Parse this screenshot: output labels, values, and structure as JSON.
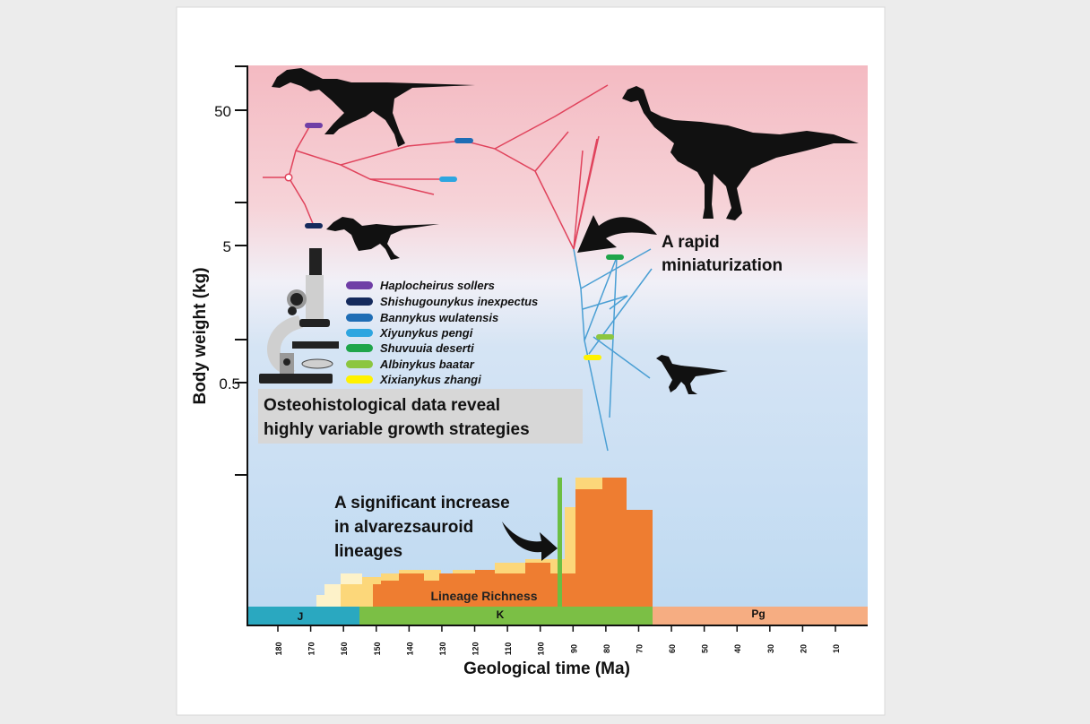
{
  "axes": {
    "ylabel": "Body weight (kg)",
    "xlabel": "Geological time (Ma)",
    "y_ticks": [
      "50",
      "5",
      "0.5"
    ],
    "x_ticks": [
      "180",
      "170",
      "160",
      "150",
      "140",
      "130",
      "120",
      "110",
      "100",
      "90",
      "80",
      "70",
      "60",
      "50",
      "40",
      "30",
      "20",
      "10"
    ]
  },
  "periods": [
    {
      "label": "J",
      "color": "#2aa8c0"
    },
    {
      "label": "K",
      "color": "#7bbf45"
    },
    {
      "label": "Pg",
      "color": "#f6ad82"
    }
  ],
  "legend": [
    {
      "name": "Haplocheirus sollers",
      "color": "#6f3ea6"
    },
    {
      "name": "Shishugounykus inexpectus",
      "color": "#152a5c"
    },
    {
      "name": "Bannykus wulatensis",
      "color": "#1f6db5"
    },
    {
      "name": "Xiyunykus pengi",
      "color": "#2ea6e0"
    },
    {
      "name": "Shuvuuia deserti",
      "color": "#1fa54a"
    },
    {
      "name": "Albinykus baatar",
      "color": "#8cc63f"
    },
    {
      "name": "Xixianykus zhangi",
      "color": "#fff200"
    }
  ],
  "annotations": {
    "miniaturization_line1": "A rapid",
    "miniaturization_line2": "miniaturization",
    "osteo_line1": "Osteohistological data reveal",
    "osteo_line2": "highly variable growth strategies",
    "increase_line1": "A significant increase",
    "increase_line2": "in alvarezsauroid",
    "increase_line3": "lineages",
    "lineage_richness": "Lineage Richness"
  },
  "icons": [
    "microscope-icon",
    "dinosaur-silhouette",
    "curved-arrow-icon"
  ],
  "colors": {
    "large_branch": "#e0435c",
    "small_branch": "#4a9fd4",
    "richness": "#ee7d31",
    "richness_light": "#fcd77a",
    "richness_pale": "#fdf2c9",
    "boundary_line": "#6cbf43"
  }
}
